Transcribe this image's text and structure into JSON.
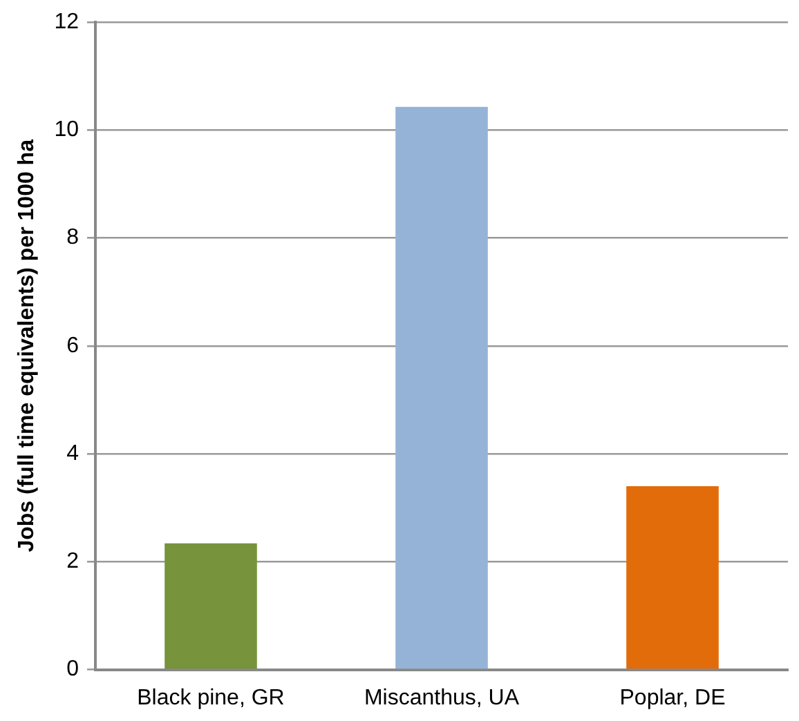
{
  "chart_data": {
    "type": "bar",
    "ylabel": "Jobs (full time equivalents) per 1000 ha",
    "categories": [
      "Black pine, GR",
      "Miscanthus, UA",
      "Poplar, DE"
    ],
    "values": [
      2.34,
      10.43,
      3.4
    ],
    "colors": [
      "#77933c",
      "#95b3d7",
      "#e36c0a"
    ],
    "ylim": [
      0,
      12
    ],
    "yticks": [
      0,
      2,
      4,
      6,
      8,
      10,
      12
    ],
    "grid": "y"
  }
}
